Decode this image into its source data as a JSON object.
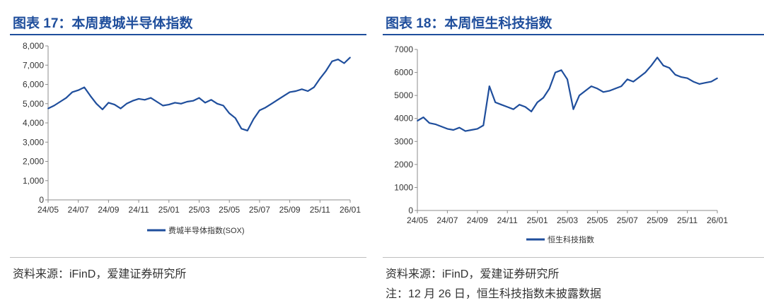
{
  "chart_data": [
    {
      "type": "line",
      "title": "图表 17：本周费城半导体指数",
      "x_ticks": [
        "24/05",
        "24/07",
        "24/09",
        "24/11",
        "25/01",
        "25/03",
        "25/05",
        "25/07",
        "25/09",
        "25/11",
        "26/01"
      ],
      "y_ticks": [
        "0",
        "1,000",
        "2,000",
        "3,000",
        "4,000",
        "5,000",
        "6,000",
        "7,000",
        "8,000"
      ],
      "ylim": [
        0,
        8000
      ],
      "grid": false,
      "legend_position": "bottom-center",
      "series": [
        {
          "name": "费城半导体指数(SOX)",
          "color": "#1f4e9c",
          "x": [
            0,
            0.2,
            0.4,
            0.6,
            0.8,
            1.0,
            1.2,
            1.4,
            1.6,
            1.8,
            2.0,
            2.2,
            2.4,
            2.6,
            2.8,
            3.0,
            3.2,
            3.4,
            3.6,
            3.8,
            4.0,
            4.2,
            4.4,
            4.6,
            4.8,
            5.0,
            5.2,
            5.4,
            5.6,
            5.8,
            6.0,
            6.2,
            6.4,
            6.6,
            6.8,
            7.0,
            7.2,
            7.4,
            7.6,
            7.8,
            8.0,
            8.2,
            8.4,
            8.6,
            8.8,
            9.0,
            9.2,
            9.4,
            9.6,
            9.8,
            10.0
          ],
          "values": [
            4750,
            4900,
            5100,
            5300,
            5600,
            5700,
            5850,
            5400,
            5000,
            4700,
            5050,
            4950,
            4750,
            5000,
            5150,
            5250,
            5200,
            5300,
            5100,
            4900,
            4950,
            5050,
            5000,
            5100,
            5150,
            5300,
            5050,
            5200,
            5000,
            4900,
            4500,
            4250,
            3700,
            3600,
            4200,
            4650,
            4800,
            5000,
            5200,
            5400,
            5600,
            5650,
            5750,
            5650,
            5850,
            6300,
            6700,
            7200,
            7300,
            7100,
            7400
          ]
        }
      ]
    },
    {
      "type": "line",
      "title": "图表 18：本周恒生科技指数",
      "x_ticks": [
        "24/05",
        "24/07",
        "24/09",
        "24/11",
        "25/01",
        "25/03",
        "25/05",
        "25/07",
        "25/09",
        "25/11",
        "26/01"
      ],
      "y_ticks": [
        "0",
        "1000",
        "2000",
        "3000",
        "4000",
        "5000",
        "6000",
        "7000"
      ],
      "ylim": [
        0,
        7000
      ],
      "grid": false,
      "legend_position": "bottom-center",
      "series": [
        {
          "name": "恒生科技指数",
          "color": "#1f4e9c",
          "x": [
            0,
            0.2,
            0.4,
            0.6,
            0.8,
            1.0,
            1.2,
            1.4,
            1.6,
            1.8,
            2.0,
            2.2,
            2.4,
            2.6,
            2.8,
            3.0,
            3.2,
            3.4,
            3.6,
            3.8,
            4.0,
            4.2,
            4.4,
            4.6,
            4.8,
            5.0,
            5.2,
            5.4,
            5.6,
            5.8,
            6.0,
            6.2,
            6.4,
            6.6,
            6.8,
            7.0,
            7.2,
            7.4,
            7.6,
            7.8,
            8.0,
            8.2,
            8.4,
            8.6,
            8.8,
            9.0,
            9.2,
            9.4,
            9.6,
            9.8,
            10.0
          ],
          "values": [
            3900,
            4050,
            3800,
            3750,
            3650,
            3550,
            3500,
            3600,
            3450,
            3500,
            3550,
            3700,
            5400,
            4700,
            4600,
            4500,
            4400,
            4600,
            4500,
            4300,
            4700,
            4900,
            5300,
            6000,
            6100,
            5700,
            4400,
            5000,
            5200,
            5400,
            5300,
            5150,
            5200,
            5300,
            5400,
            5700,
            5600,
            5800,
            6000,
            6300,
            6650,
            6300,
            6200,
            5900,
            5800,
            5750,
            5600,
            5500,
            5550,
            5600,
            5750
          ]
        }
      ]
    }
  ],
  "left": {
    "source": "资料来源：iFinD，爱建证券研究所"
  },
  "right": {
    "source": "资料来源：iFinD，爱建证券研究所",
    "footnote": "注：12 月 26 日，恒生科技指数未披露数据"
  }
}
